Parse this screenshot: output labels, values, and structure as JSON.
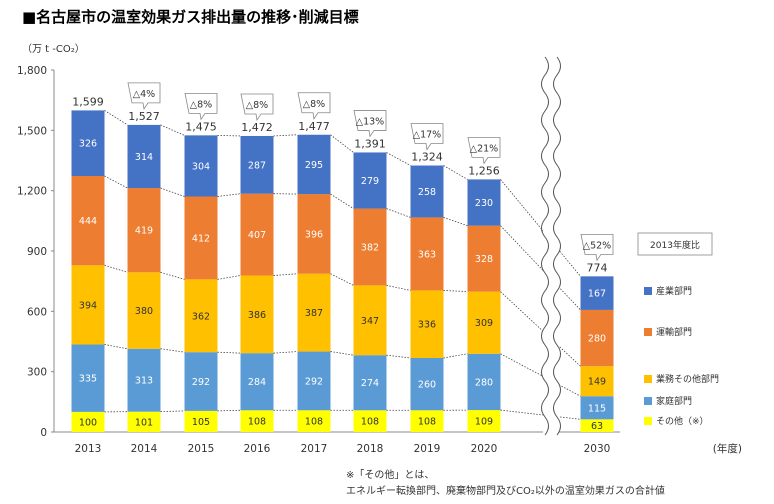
{
  "chart_data": {
    "type": "bar",
    "stacked": true,
    "title": "■名古屋市の温室効果ガス排出量の推移･削減目標",
    "ylabel": "（万 t -CO₂）",
    "xlabel": "(年度)",
    "ylim": [
      0,
      1800
    ],
    "yticks": [
      "0",
      "300",
      "600",
      "900",
      "1,200",
      "1,500",
      "1,800"
    ],
    "ytick_values": [
      0,
      300,
      600,
      900,
      1200,
      1500,
      1800
    ],
    "categories": [
      "2013",
      "2014",
      "2015",
      "2016",
      "2017",
      "2018",
      "2019",
      "2020",
      "2030"
    ],
    "series": [
      {
        "name": "その他（※）",
        "color": "#ffff00",
        "values": [
          100,
          101,
          105,
          108,
          108,
          108,
          108,
          109,
          63
        ]
      },
      {
        "name": "家庭部門",
        "color": "#5b9bd5",
        "values": [
          335,
          313,
          292,
          284,
          292,
          274,
          260,
          280,
          115
        ]
      },
      {
        "name": "業務その他部門",
        "color": "#ffc000",
        "values": [
          394,
          380,
          362,
          386,
          387,
          347,
          336,
          309,
          149
        ]
      },
      {
        "name": "運輸部門",
        "color": "#ed7d31",
        "values": [
          444,
          419,
          412,
          407,
          396,
          382,
          363,
          328,
          280
        ]
      },
      {
        "name": "産業部門",
        "color": "#4472c4",
        "values": [
          326,
          314,
          304,
          287,
          295,
          279,
          258,
          230,
          167
        ]
      }
    ],
    "totals": [
      "1,599",
      "1,527",
      "1,475",
      "1,472",
      "1,477",
      "1,391",
      "1,324",
      "1,256",
      "774"
    ],
    "total_values": [
      1599,
      1527,
      1475,
      1472,
      1477,
      1391,
      1324,
      1256,
      774
    ],
    "reductions": [
      "",
      "△4%",
      "△8%",
      "△8%",
      "△8%",
      "△13%",
      "△17%",
      "△21%",
      "△52%"
    ],
    "legend_title": "2013年度比",
    "legend_placement": "right",
    "legend_order": [
      "産業部門",
      "運輸部門",
      "業務その他部門",
      "家庭部門",
      "その他（※）"
    ],
    "note_lines": [
      "※「その他」とは、",
      "エネルギー転換部門、廃棄物部門及びCO₂以外の温室効果ガスの合計値"
    ],
    "grid": false
  }
}
